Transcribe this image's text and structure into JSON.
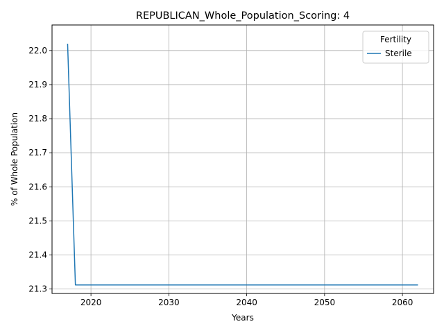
{
  "chart_data": {
    "type": "line",
    "title": "REPUBLICAN_Whole_Population_Scoring: 4",
    "xlabel": "Years",
    "ylabel": "% of Whole Population",
    "xlim": [
      2015,
      2064
    ],
    "ylim": [
      21.287,
      22.075
    ],
    "xticks": [
      2020,
      2030,
      2040,
      2050,
      2060
    ],
    "yticks": [
      21.3,
      21.4,
      21.5,
      21.6,
      21.7,
      21.8,
      21.9,
      22.0
    ],
    "xtick_labels": [
      "2020",
      "2030",
      "2040",
      "2050",
      "2060"
    ],
    "ytick_labels": [
      "21.3",
      "21.4",
      "21.5",
      "21.6",
      "21.7",
      "21.8",
      "21.9",
      "22.0"
    ],
    "grid": true,
    "legend": {
      "title": "Fertility",
      "placement": "top-right"
    },
    "series": [
      {
        "name": "Sterile",
        "color": "#1f77b4",
        "x": [
          2017,
          2018,
          2019,
          2020,
          2025,
          2030,
          2035,
          2040,
          2045,
          2050,
          2055,
          2060,
          2062
        ],
        "y": [
          22.02,
          21.312,
          21.312,
          21.312,
          21.312,
          21.312,
          21.312,
          21.312,
          21.312,
          21.312,
          21.312,
          21.312,
          21.312
        ]
      }
    ]
  }
}
